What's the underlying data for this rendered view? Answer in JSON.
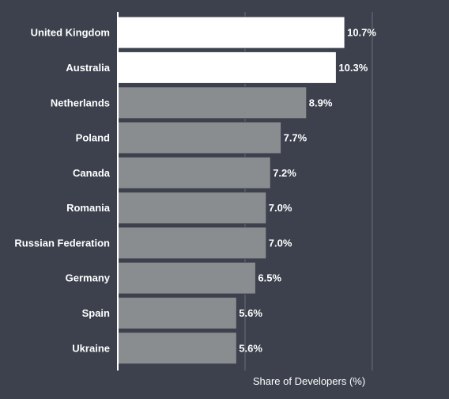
{
  "chart_data": {
    "type": "bar",
    "orientation": "horizontal",
    "categories": [
      "United Kingdom",
      "Australia",
      "Netherlands",
      "Poland",
      "Canada",
      "Romania",
      "Russian Federation",
      "Germany",
      "Spain",
      "Ukraine"
    ],
    "values": [
      10.7,
      10.3,
      8.9,
      7.7,
      7.2,
      7.0,
      7.0,
      6.5,
      5.6,
      5.6
    ],
    "value_labels": [
      "10.7%",
      "10.3%",
      "8.9%",
      "7.7%",
      "7.2%",
      "7.0%",
      "7.0%",
      "6.5%",
      "5.6%",
      "5.6%"
    ],
    "highlighted": [
      true,
      true,
      false,
      false,
      false,
      false,
      false,
      false,
      false,
      false
    ],
    "xlabel": "Share of Developers (%)",
    "ylabel": "",
    "title": "",
    "xlim": [
      0,
      12
    ],
    "gridlines_at": [
      6,
      12
    ],
    "grid": true,
    "colors": {
      "background": "#3c414d",
      "highlight_bar": "#ffffff",
      "default_bar": "#8a8d90",
      "bar_outline": "#3c414d",
      "axis_line": "#ffffff",
      "gridline": "#6c707a",
      "text": "#ffffff"
    }
  }
}
